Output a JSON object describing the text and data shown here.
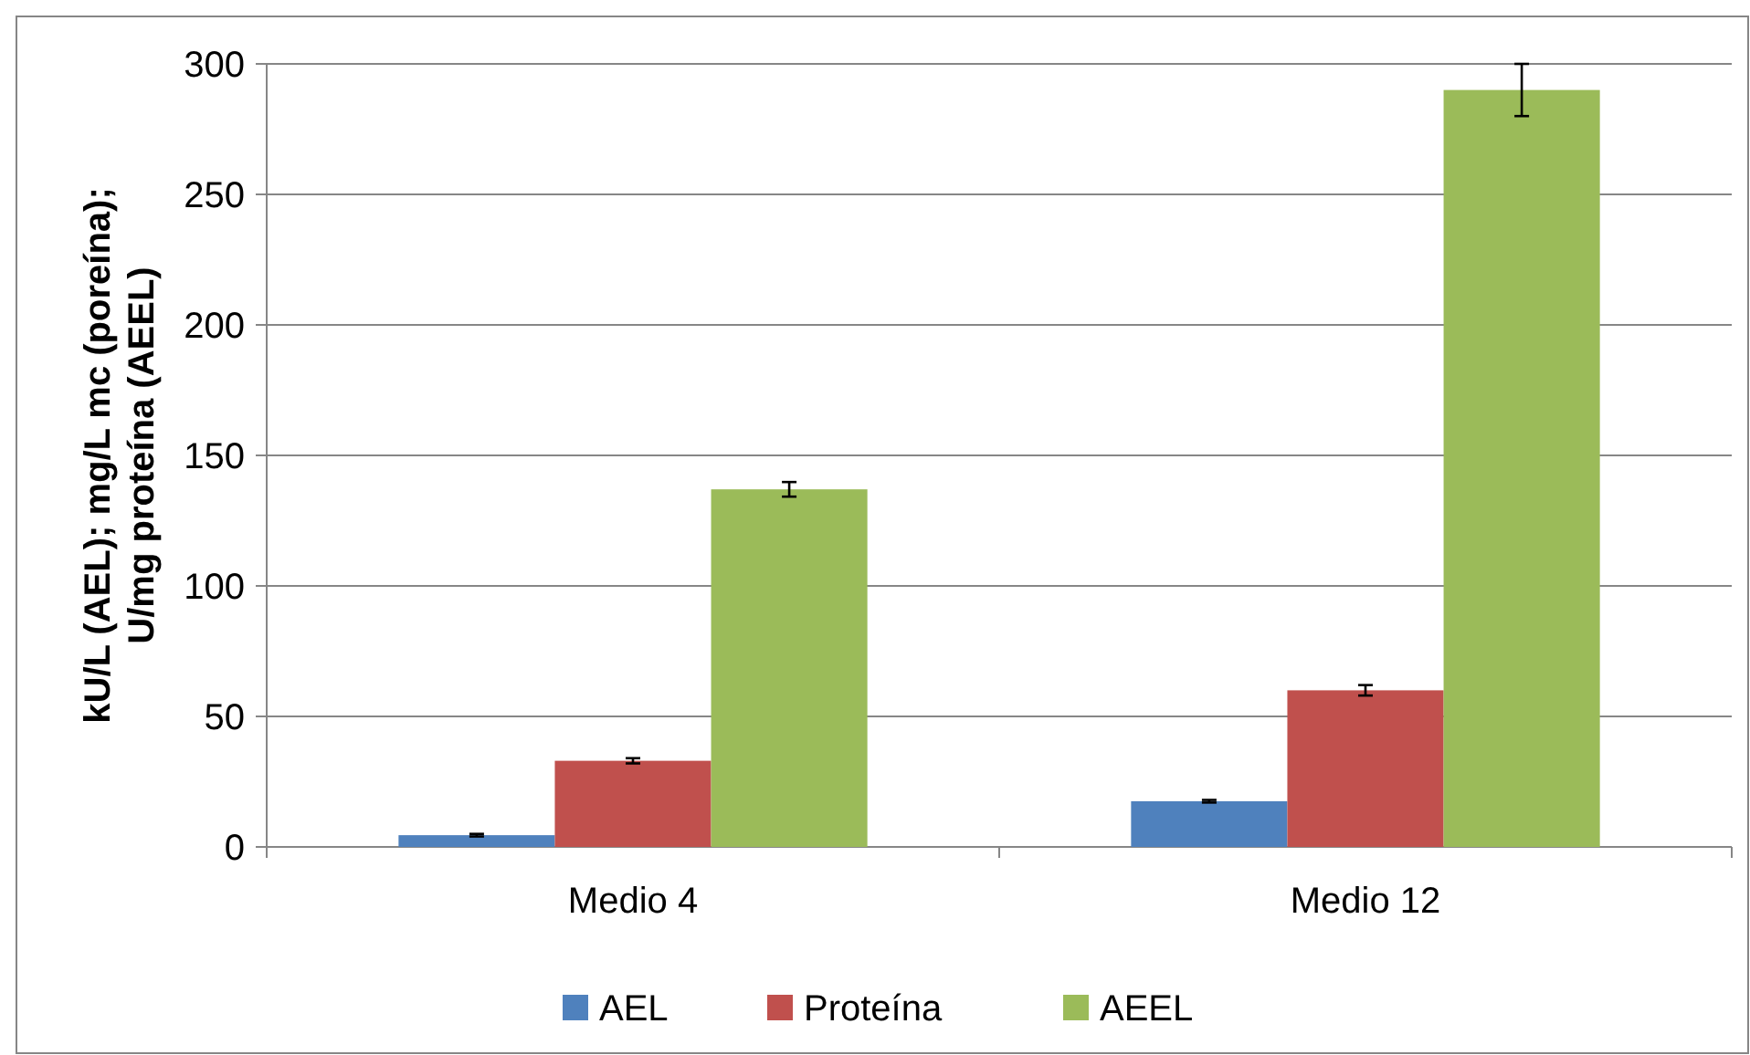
{
  "chart_data": {
    "type": "bar",
    "ylabel": "kU/L (AEL); mg/L mc (poreína);\nU/mg proteína (AEEL)",
    "categories": [
      "Medio 4",
      "Medio 12"
    ],
    "series": [
      {
        "name": "AEL",
        "color": "#4f81bd",
        "values": [
          4.5,
          17.5
        ],
        "errors": [
          0.5,
          0.5
        ]
      },
      {
        "name": "Proteína",
        "color": "#c0504d",
        "values": [
          33,
          60
        ],
        "errors": [
          1,
          2
        ]
      },
      {
        "name": "AEEL",
        "color": "#9bbb59",
        "values": [
          137,
          290
        ],
        "errors": [
          2.8,
          10
        ]
      }
    ],
    "ylim": [
      0,
      300
    ],
    "yticks": [
      0,
      50,
      100,
      150,
      200,
      250,
      300
    ],
    "grid": "y",
    "legend": "bottom"
  }
}
